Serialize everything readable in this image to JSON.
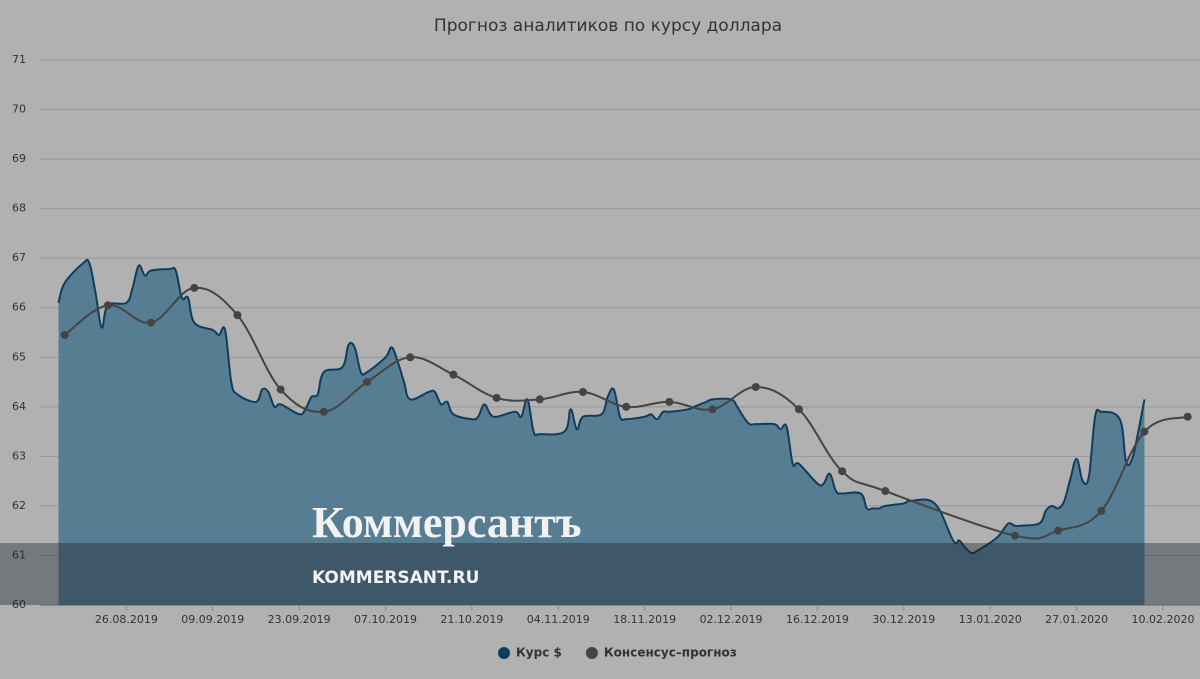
{
  "chart_data": {
    "type": "line",
    "title": "Прогноз аналитиков по курсу доллара",
    "ylim": [
      60,
      71
    ],
    "yticks": [
      60,
      61,
      62,
      63,
      64,
      65,
      66,
      67,
      68,
      69,
      70,
      71
    ],
    "xlim": [
      "12.08.2019",
      "16.02.2020"
    ],
    "xticks": [
      "26.08.2019",
      "09.09.2019",
      "23.09.2019",
      "07.10.2019",
      "21.10.2019",
      "04.11.2019",
      "18.11.2019",
      "02.12.2019",
      "16.12.2019",
      "30.12.2019",
      "13.01.2020",
      "27.01.2020",
      "10.02.2020"
    ],
    "grid": true,
    "legend": "bottom",
    "watermark": {
      "logo": "Коммерсантъ",
      "url": "KOMMERSANT.RU"
    },
    "series": [
      {
        "name": "Курс $",
        "type": "area",
        "color": "#0f3d5e",
        "fill": "#577d93",
        "x": [
          "15.08.2019",
          "16.08.2019",
          "19.08.2019",
          "20.08.2019",
          "21.08.2019",
          "22.08.2019",
          "23.08.2019",
          "26.08.2019",
          "27.08.2019",
          "28.08.2019",
          "29.08.2019",
          "30.08.2019",
          "02.09.2019",
          "03.09.2019",
          "04.09.2019",
          "05.09.2019",
          "06.09.2019",
          "09.09.2019",
          "10.09.2019",
          "11.09.2019",
          "12.09.2019",
          "13.09.2019",
          "16.09.2019",
          "17.09.2019",
          "18.09.2019",
          "19.09.2019",
          "20.09.2019",
          "23.09.2019",
          "24.09.2019",
          "25.09.2019",
          "26.09.2019",
          "27.09.2019",
          "30.09.2019",
          "01.10.2019",
          "02.10.2019",
          "03.10.2019",
          "04.10.2019",
          "07.10.2019",
          "08.10.2019",
          "09.10.2019",
          "10.10.2019",
          "11.10.2019",
          "14.10.2019",
          "15.10.2019",
          "16.10.2019",
          "17.10.2019",
          "18.10.2019",
          "21.10.2019",
          "22.10.2019",
          "23.10.2019",
          "24.10.2019",
          "25.10.2019",
          "28.10.2019",
          "29.10.2019",
          "30.10.2019",
          "31.10.2019",
          "01.11.2019",
          "05.11.2019",
          "06.11.2019",
          "07.11.2019",
          "08.11.2019",
          "11.11.2019",
          "12.11.2019",
          "13.11.2019",
          "14.11.2019",
          "15.11.2019",
          "18.11.2019",
          "19.11.2019",
          "20.11.2019",
          "21.11.2019",
          "22.11.2019",
          "25.11.2019",
          "26.11.2019",
          "27.11.2019",
          "28.11.2019",
          "29.11.2019",
          "02.12.2019",
          "03.12.2019",
          "04.12.2019",
          "05.12.2019",
          "06.12.2019",
          "09.12.2019",
          "10.12.2019",
          "11.12.2019",
          "12.12.2019",
          "13.12.2019",
          "16.12.2019",
          "17.12.2019",
          "18.12.2019",
          "19.12.2019",
          "20.12.2019",
          "23.12.2019",
          "24.12.2019",
          "25.12.2019",
          "26.12.2019",
          "27.12.2019",
          "30.12.2019",
          "31.12.2019",
          "04.01.2020",
          "07.01.2020",
          "08.01.2020",
          "09.01.2020",
          "10.01.2020",
          "11.01.2020",
          "14.01.2020",
          "15.01.2020",
          "16.01.2020",
          "17.01.2020",
          "18.01.2020",
          "21.01.2020",
          "22.01.2020",
          "23.01.2020",
          "24.01.2020",
          "25.01.2020",
          "26.01.2020",
          "27.01.2020",
          "28.01.2020",
          "29.01.2020",
          "30.01.2020",
          "31.01.2020",
          "03.02.2020",
          "04.02.2020",
          "05.02.2020",
          "06.02.2020",
          "07.02.2020"
        ],
        "values": [
          66.1,
          66.5,
          66.9,
          66.9,
          66.3,
          65.6,
          66.05,
          66.1,
          66.4,
          66.85,
          66.65,
          66.75,
          66.78,
          66.75,
          66.2,
          66.2,
          65.7,
          65.55,
          65.45,
          65.55,
          64.5,
          64.25,
          64.1,
          64.35,
          64.3,
          64.0,
          64.05,
          63.85,
          63.95,
          64.2,
          64.25,
          64.7,
          64.8,
          65.25,
          65.2,
          64.7,
          64.7,
          65.0,
          65.2,
          64.9,
          64.5,
          64.15,
          64.3,
          64.3,
          64.05,
          64.1,
          63.85,
          63.75,
          63.8,
          64.05,
          63.85,
          63.8,
          63.9,
          63.8,
          64.15,
          63.5,
          63.45,
          63.5,
          63.95,
          63.55,
          63.8,
          63.85,
          64.2,
          64.35,
          63.8,
          63.75,
          63.8,
          63.85,
          63.75,
          63.9,
          63.9,
          63.95,
          64.0,
          64.05,
          64.1,
          64.15,
          64.15,
          64.0,
          63.8,
          63.65,
          63.65,
          63.65,
          63.55,
          63.6,
          62.85,
          62.85,
          62.45,
          62.45,
          62.65,
          62.3,
          62.25,
          62.25,
          61.95,
          61.95,
          61.95,
          62.0,
          62.05,
          62.1,
          62.05,
          61.3,
          61.3,
          61.15,
          61.05,
          61.1,
          61.35,
          61.5,
          61.65,
          61.6,
          61.6,
          61.65,
          61.9,
          62.0,
          61.95,
          62.1,
          62.55,
          62.95,
          62.5,
          62.6,
          63.8,
          63.9,
          63.75,
          62.9,
          62.95,
          63.5,
          64.15
        ]
      },
      {
        "name": "Консенсус–прогноз",
        "type": "line",
        "color": "#444444",
        "x": [
          "16.08.2019",
          "23.08.2019",
          "30.08.2019",
          "06.09.2019",
          "13.09.2019",
          "20.09.2019",
          "27.09.2019",
          "04.10.2019",
          "11.10.2019",
          "18.10.2019",
          "25.10.2019",
          "01.11.2019",
          "08.11.2019",
          "15.11.2019",
          "22.11.2019",
          "29.11.2019",
          "06.12.2019",
          "13.12.2019",
          "20.12.2019",
          "27.12.2019",
          "17.01.2020",
          "24.01.2020",
          "31.01.2020",
          "07.02.2020",
          "14.02.2020"
        ],
        "values": [
          65.45,
          66.05,
          65.7,
          66.4,
          65.85,
          64.35,
          63.9,
          64.5,
          65.0,
          64.65,
          64.18,
          64.15,
          64.3,
          64.0,
          64.1,
          63.95,
          64.4,
          63.95,
          62.7,
          62.3,
          61.4,
          61.5,
          61.9,
          63.5,
          63.8
        ]
      }
    ]
  }
}
